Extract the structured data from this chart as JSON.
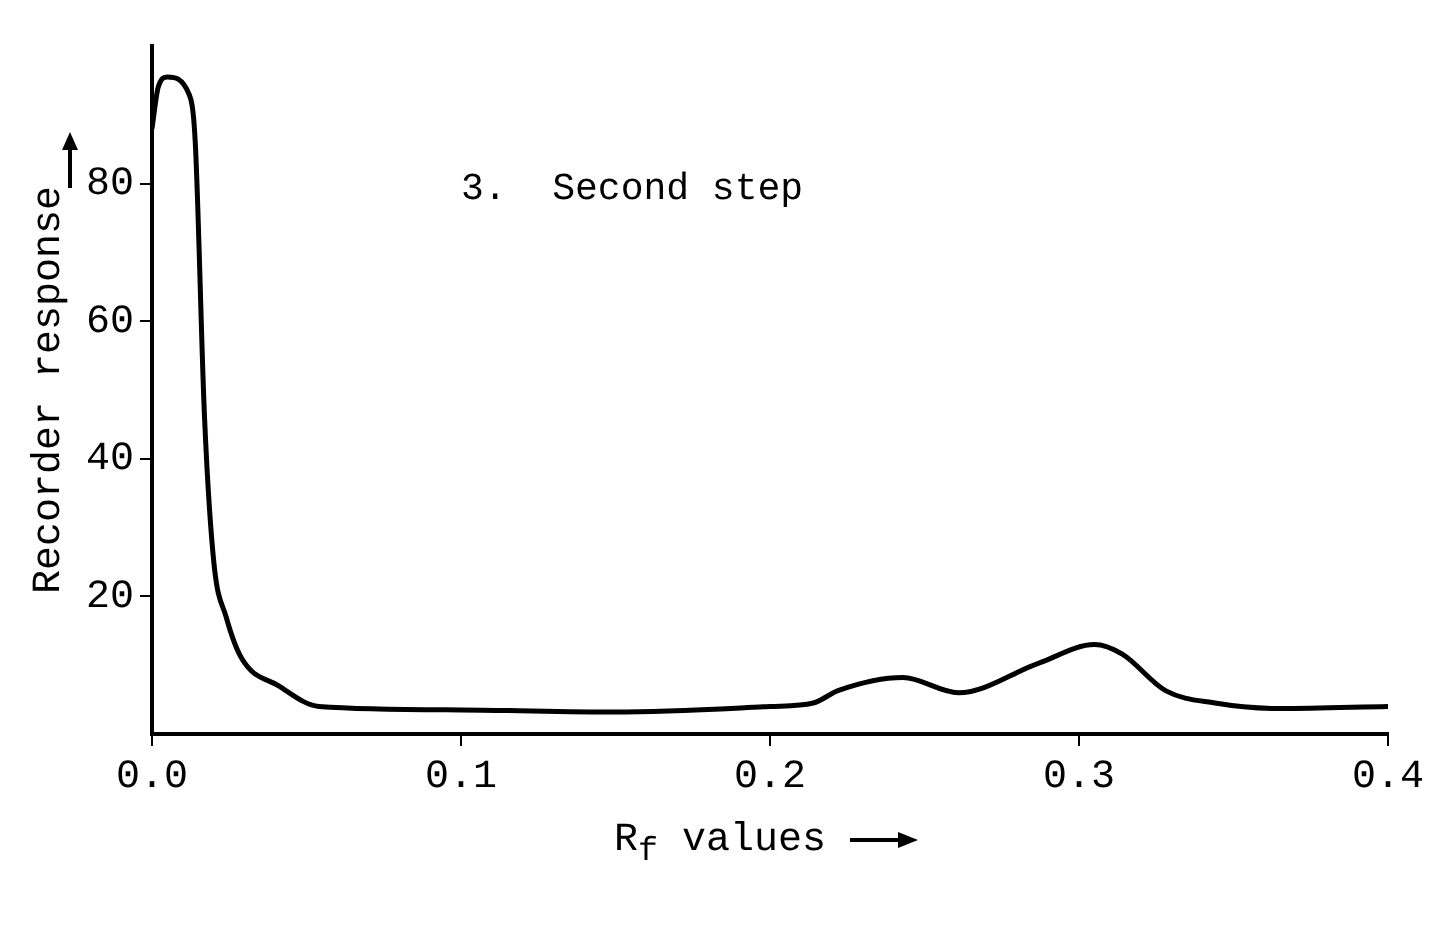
{
  "chart_data": {
    "type": "line",
    "xlabel": "R$_{f}$ values",
    "ylabel": "Recorder response",
    "annotations": [
      "3.  Second step"
    ],
    "xlim": [
      0,
      0.4
    ],
    "xticks": [
      {
        "value": 0,
        "label": "0.0"
      },
      0.1,
      0.2,
      0.3,
      0.4
    ],
    "ylim": [
      0,
      100
    ],
    "yticks": [
      20,
      40,
      60,
      80
    ],
    "grid": false,
    "legend": false,
    "marker": "none",
    "line_style": "solid",
    "series": [
      {
        "color": "#000000",
        "x": [
          0,
          0.002,
          0.005,
          0.012,
          0.014,
          0.017,
          0.02,
          0.024,
          0.029,
          0.041,
          0.054,
          0.1,
          0.15,
          0.2,
          0.214,
          0.222,
          0.243,
          0.261,
          0.287,
          0.305,
          0.314,
          0.328,
          0.344,
          0.365,
          0.4
        ],
        "values": [
          88,
          94,
          95.5,
          93,
          86,
          46,
          25,
          17,
          11,
          7,
          4,
          3.5,
          3.2,
          4,
          4.5,
          6.3,
          8.2,
          6,
          10.3,
          13,
          11.6,
          6.3,
          4.5,
          3.7,
          4
        ]
      }
    ]
  }
}
